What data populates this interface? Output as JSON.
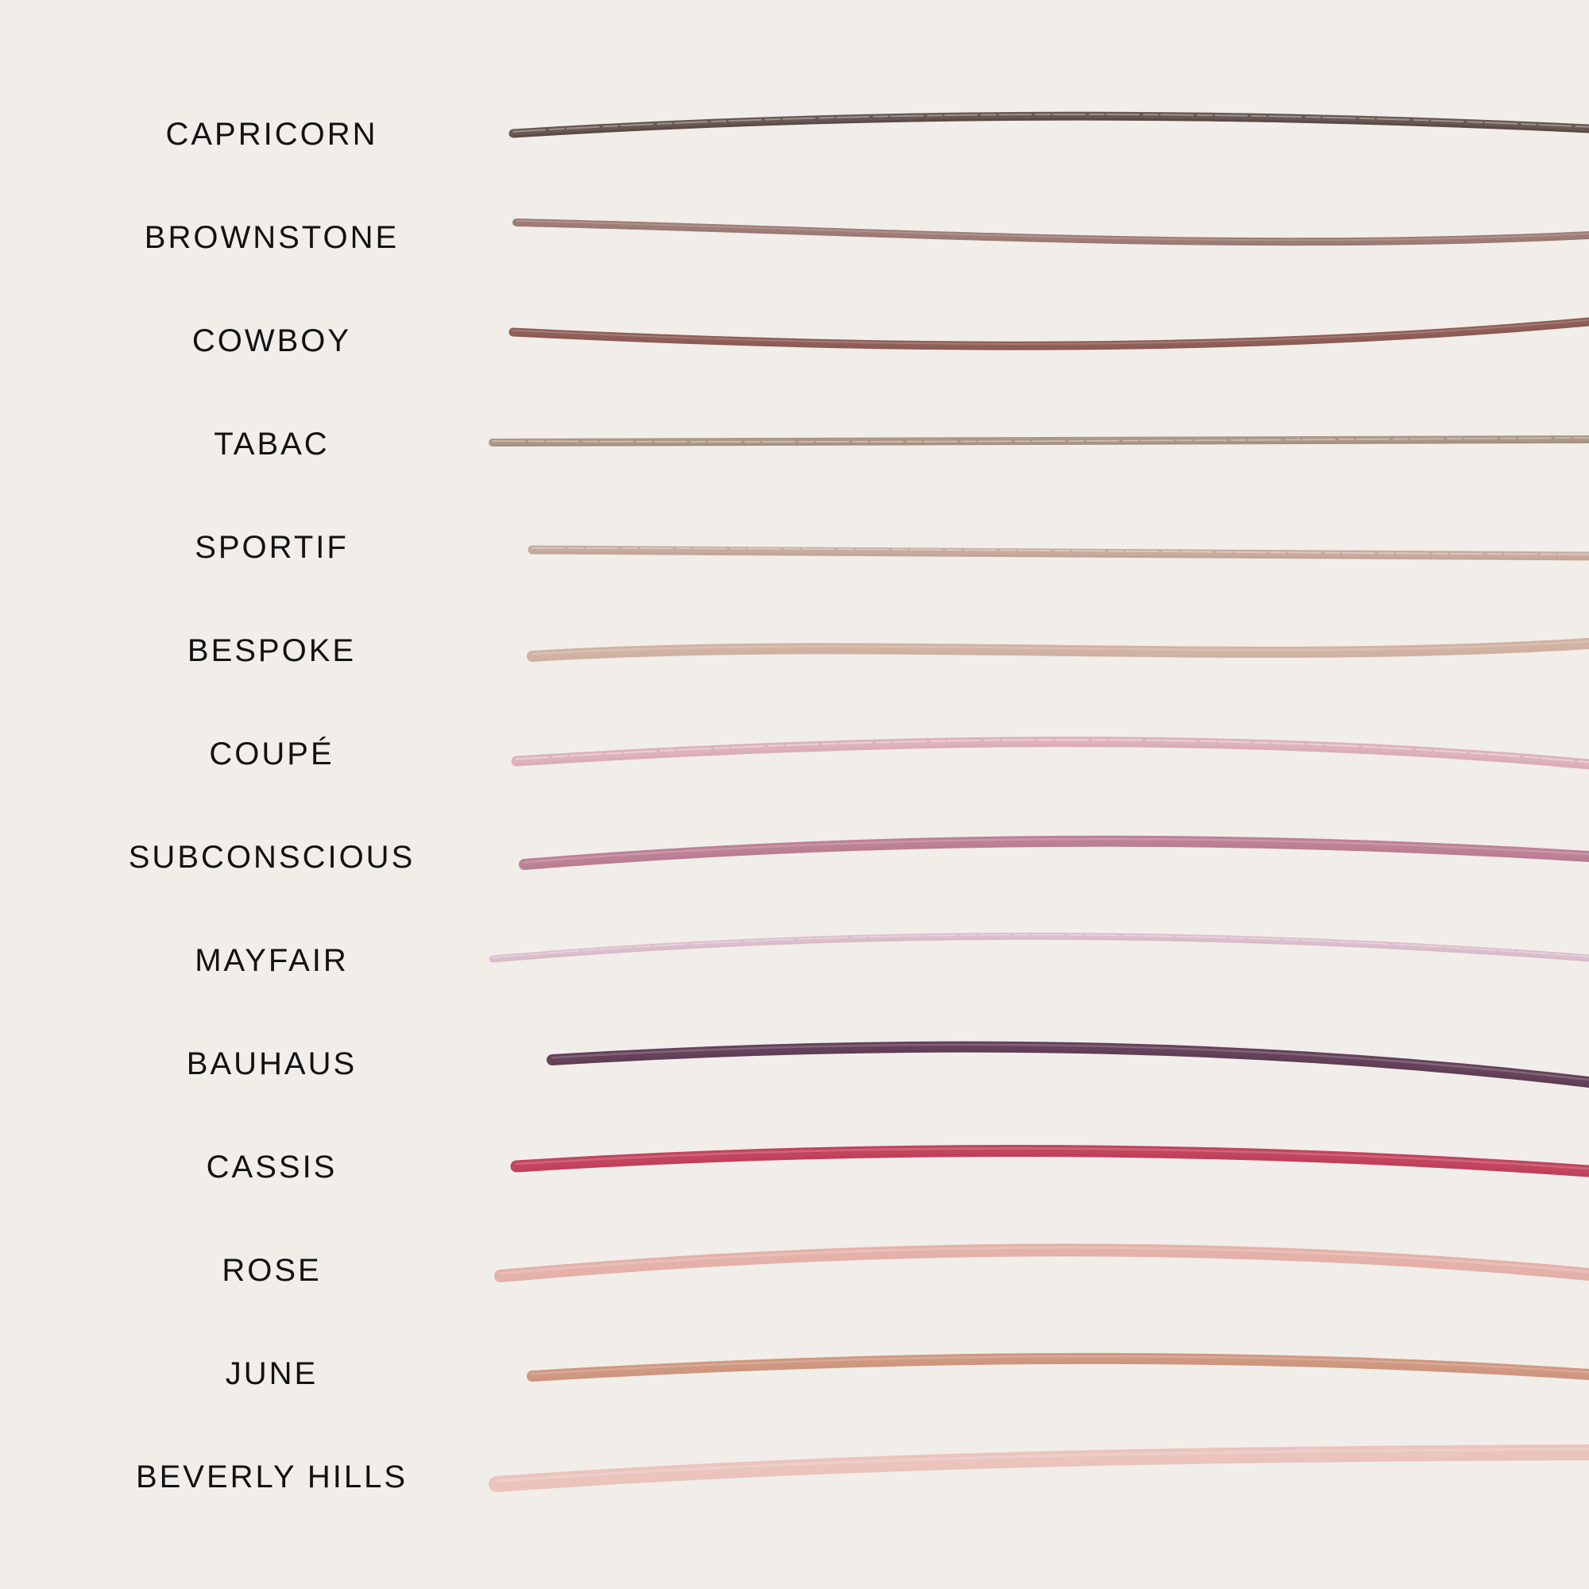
{
  "shades": [
    {
      "name": "CAPRICORN",
      "color": "#4f3d38",
      "texture": "grainy"
    },
    {
      "name": "BROWNSTONE",
      "color": "#9a7572",
      "texture": "smooth"
    },
    {
      "name": "COWBOY",
      "color": "#8a5550",
      "texture": "smooth"
    },
    {
      "name": "TABAC",
      "color": "#a08878",
      "texture": "grainy"
    },
    {
      "name": "SPORTIF",
      "color": "#c09f90",
      "texture": "grainy"
    },
    {
      "name": "BESPOKE",
      "color": "#cfae9f",
      "texture": "smooth"
    },
    {
      "name": "COUPÉ",
      "color": "#d9a7b1",
      "texture": "grainy"
    },
    {
      "name": "SUBCONSCIOUS",
      "color": "#b97a90",
      "texture": "smooth"
    },
    {
      "name": "MAYFAIR",
      "color": "#d8b5c8",
      "texture": "grainy"
    },
    {
      "name": "BAUHAUS",
      "color": "#5d3852",
      "texture": "smooth"
    },
    {
      "name": "CASSIS",
      "color": "#bf3a56",
      "texture": "smooth"
    },
    {
      "name": "ROSE",
      "color": "#e3aea6",
      "texture": "smooth"
    },
    {
      "name": "JUNE",
      "color": "#cd927b",
      "texture": "smooth"
    },
    {
      "name": "BEVERLY HILLS",
      "color": "#e9c1ba",
      "texture": "smooth"
    }
  ]
}
